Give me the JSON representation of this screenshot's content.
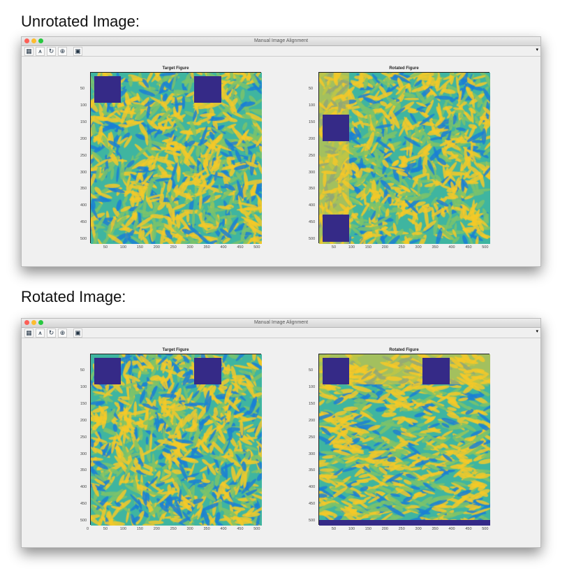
{
  "sections": [
    {
      "heading": "Unrotated Image:",
      "window_title": "Manual Image Alignment",
      "panels": [
        {
          "title": "Target Figure",
          "xticks": [
            50,
            100,
            150,
            200,
            250,
            300,
            350,
            400,
            450,
            500
          ],
          "yticks": [
            50,
            100,
            150,
            200,
            250,
            300,
            350,
            400,
            450,
            500
          ],
          "dark_regions": [
            [
              10,
              10,
              90,
              90
            ],
            [
              310,
              10,
              390,
              90
            ]
          ],
          "yellow_strip": null
        },
        {
          "title": "Rotated Figure",
          "xticks": [
            50,
            100,
            150,
            200,
            250,
            300,
            350,
            400,
            450,
            500
          ],
          "yticks": [
            50,
            100,
            150,
            200,
            250,
            300,
            350,
            400,
            450,
            500
          ],
          "dark_regions": [
            [
              10,
              125,
              90,
              205
            ],
            [
              10,
              425,
              90,
              505
            ]
          ],
          "yellow_strip": [
            0,
            0,
            90,
            512
          ]
        }
      ]
    },
    {
      "heading": "Rotated Image:",
      "window_title": "Manual Image Alignment",
      "panels": [
        {
          "title": "Target Figure",
          "xticks": [
            0,
            50,
            100,
            150,
            200,
            250,
            300,
            350,
            400,
            450,
            500
          ],
          "yticks": [
            50,
            100,
            150,
            200,
            250,
            300,
            350,
            400,
            450,
            500
          ],
          "dark_regions": [
            [
              10,
              10,
              90,
              90
            ],
            [
              310,
              10,
              390,
              90
            ]
          ],
          "yellow_strip": null
        },
        {
          "title": "Rotated Figure",
          "xticks": [
            50,
            100,
            150,
            200,
            250,
            300,
            350,
            400,
            450,
            500
          ],
          "yticks": [
            50,
            100,
            150,
            200,
            250,
            300,
            350,
            400,
            450,
            500
          ],
          "dark_regions": [
            [
              10,
              10,
              90,
              90
            ],
            [
              310,
              10,
              390,
              90
            ],
            [
              0,
              495,
              512,
              512
            ]
          ],
          "yellow_strip": [
            0,
            0,
            512,
            90
          ]
        }
      ]
    }
  ],
  "toolbar": {
    "icons": [
      "image-icon",
      "histogram-icon",
      "rotate-icon",
      "zoom-in-icon",
      "save-icon"
    ],
    "glyphs": [
      "▦",
      "⩚",
      "↻",
      "⊕",
      "▣"
    ]
  },
  "colors": {
    "dark": "#352a87",
    "yellow": "#f5c928",
    "teal": "#3fb5a0",
    "blue": "#1a7fd6",
    "close": "#fc5f57",
    "min": "#fdbc2e",
    "max": "#28c840"
  }
}
